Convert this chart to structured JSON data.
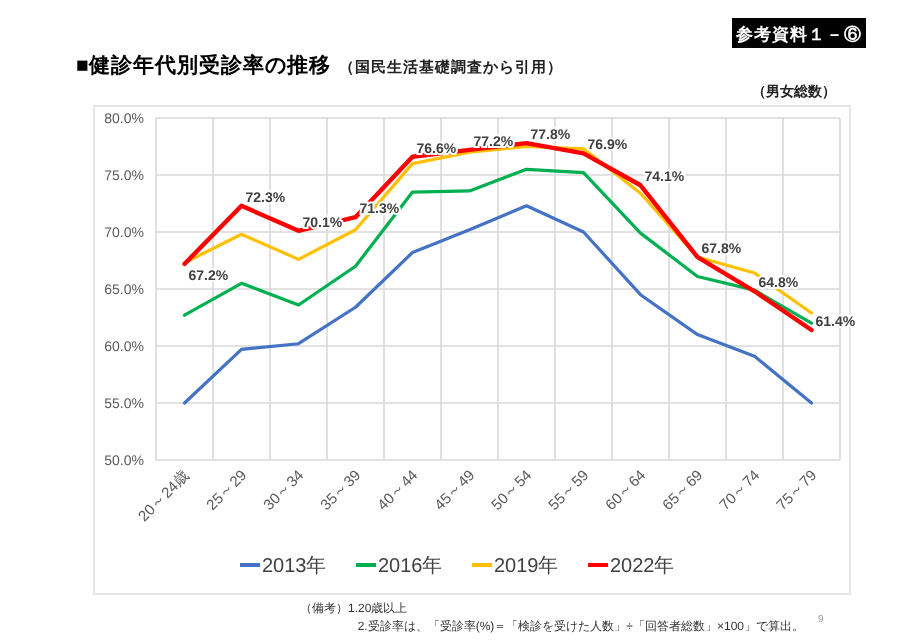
{
  "chart_data": {
    "type": "line",
    "title": "■健診年代別受診率の推移",
    "subtitle": "（国民生活基礎調査から引用）",
    "annotations": [
      "参考資料１－⑥",
      "（男女総数）",
      "（備考）1.20歳以上",
      "2.受診率は、「受診率(%)＝「検診を受けた人数」÷「回答者総数」×100」で算出。",
      "9"
    ],
    "categories": [
      "20～24歳",
      "25～29",
      "30～34",
      "35～39",
      "40～44",
      "45～49",
      "50～54",
      "55～59",
      "60～64",
      "65～69",
      "70～74",
      "75～79"
    ],
    "ylim": [
      50,
      80
    ],
    "yticks": [
      {
        "value": 50,
        "label": "50.0%"
      },
      {
        "value": 55,
        "label": "55.0%"
      },
      {
        "value": 60,
        "label": "60.0%"
      },
      {
        "value": 65,
        "label": "65.0%"
      },
      {
        "value": 70,
        "label": "70.0%"
      },
      {
        "value": 75,
        "label": "75.0%"
      },
      {
        "value": 80,
        "label": "80.0%"
      }
    ],
    "grid": true,
    "legend": "bottom",
    "marker": "none",
    "line_style": "solid",
    "series": [
      {
        "name": "2013年",
        "color": "#4472c4",
        "values": [
          55.0,
          59.7,
          60.2,
          63.4,
          68.2,
          70.2,
          72.3,
          70.0,
          64.5,
          61.0,
          59.1,
          55.0
        ]
      },
      {
        "name": "2016年",
        "color": "#00b050",
        "values": [
          62.7,
          65.5,
          63.6,
          67.0,
          73.5,
          73.6,
          75.5,
          75.2,
          69.9,
          66.1,
          64.9,
          62.0
        ]
      },
      {
        "name": "2019年",
        "color": "#ffc000",
        "values": [
          67.3,
          69.8,
          67.6,
          70.2,
          76.0,
          77.0,
          77.5,
          77.3,
          73.4,
          67.8,
          66.4,
          62.9
        ]
      },
      {
        "name": "2022年",
        "color": "#ff0000",
        "values": [
          67.2,
          72.3,
          70.1,
          71.3,
          76.6,
          77.2,
          77.8,
          76.9,
          74.1,
          67.8,
          64.8,
          61.4
        ],
        "value_labels": [
          "67.2%",
          "72.3%",
          "70.1%",
          "71.3%",
          "76.6%",
          "77.2%",
          "77.8%",
          "76.9%",
          "74.1%",
          "67.8%",
          "64.8%",
          "61.4%"
        ]
      }
    ]
  }
}
